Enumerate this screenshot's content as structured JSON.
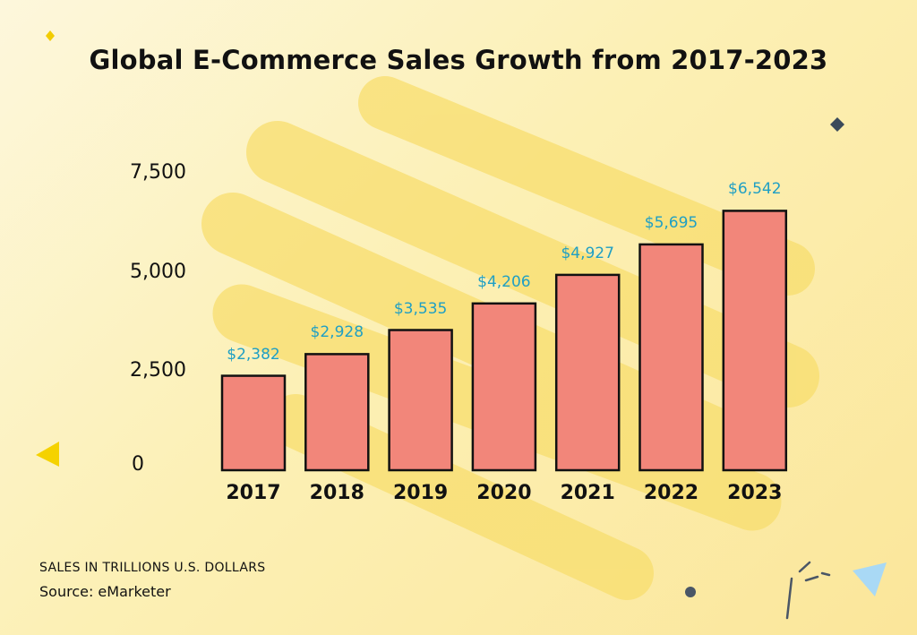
{
  "page": {
    "background": "#fcf0b5",
    "bar_color": "#f2867a",
    "label_color": "#1f9fc4"
  },
  "chart_data": {
    "type": "bar",
    "title": "Global E-Commerce Sales Growth from 2017-2023",
    "categories": [
      "2017",
      "2018",
      "2019",
      "2020",
      "2021",
      "2022",
      "2023"
    ],
    "values": [
      2382,
      2928,
      3535,
      4206,
      4927,
      5695,
      6542
    ],
    "data_labels": [
      "$2,382",
      "$2,928",
      "$3,535",
      "$4,206",
      "$4,927",
      "$5,695",
      "$6,542"
    ],
    "yticks": [
      {
        "value": 0,
        "label": "0"
      },
      {
        "value": 2500,
        "label": "2,500"
      },
      {
        "value": 5000,
        "label": "5,000"
      },
      {
        "value": 7500,
        "label": "7,500"
      }
    ],
    "ylim": [
      0,
      7500
    ],
    "grid": false,
    "legend": "none"
  },
  "footnotes": {
    "units": "SALES IN TRILLIONS U.S. DOLLARS",
    "source": "Source: eMarketer"
  }
}
